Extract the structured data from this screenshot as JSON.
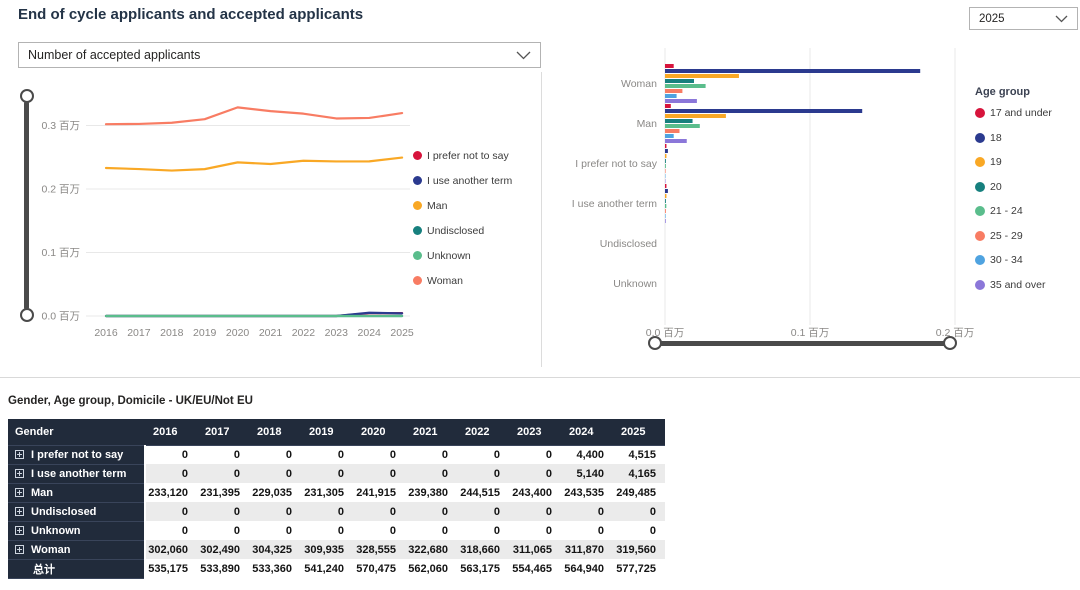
{
  "page": {
    "title": "End of cycle applicants and accepted applicants",
    "year_dropdown": {
      "value": "2025"
    },
    "metric_dropdown": {
      "value": "Number of accepted applicants"
    }
  },
  "chart_data": [
    {
      "type": "line",
      "title": "Number of accepted applicants",
      "x": [
        2016,
        2017,
        2018,
        2019,
        2020,
        2021,
        2022,
        2023,
        2024,
        2025
      ],
      "y_unit": "百万",
      "y_ticks": [
        {
          "v": 0.0,
          "label": "0.0 百万"
        },
        {
          "v": 0.1,
          "label": "0.1 百万"
        },
        {
          "v": 0.2,
          "label": "0.2 百万"
        },
        {
          "v": 0.3,
          "label": "0.3 百万"
        }
      ],
      "ylim": [
        0,
        0.35
      ],
      "legend_position": "right",
      "grid": true,
      "series": [
        {
          "name": "I prefer not to say",
          "color": "#D7143C",
          "values": [
            0,
            0,
            0,
            0,
            0,
            0,
            0,
            0,
            4400,
            4515
          ]
        },
        {
          "name": "I use another term",
          "color": "#2B3A8F",
          "values": [
            0,
            0,
            0,
            0,
            0,
            0,
            0,
            0,
            5140,
            4165
          ]
        },
        {
          "name": "Man",
          "color": "#F9A825",
          "values": [
            233120,
            231395,
            229035,
            231305,
            241915,
            239380,
            244515,
            243400,
            243535,
            249485
          ]
        },
        {
          "name": "Undisclosed",
          "color": "#17807E",
          "values": [
            0,
            0,
            0,
            0,
            0,
            0,
            0,
            0,
            0,
            0
          ]
        },
        {
          "name": "Unknown",
          "color": "#5ABD8C",
          "values": [
            0,
            0,
            0,
            0,
            0,
            0,
            0,
            0,
            0,
            0
          ]
        },
        {
          "name": "Woman",
          "color": "#F87C63",
          "values": [
            302060,
            302490,
            304325,
            309935,
            328555,
            322680,
            318660,
            311065,
            311870,
            319560
          ]
        }
      ]
    },
    {
      "type": "bar",
      "orientation": "horizontal",
      "categories": [
        "Woman",
        "Man",
        "I prefer not to say",
        "I use another term",
        "Undisclosed",
        "Unknown"
      ],
      "x_unit": "百万",
      "x_ticks": [
        {
          "v": 0.0,
          "label": "0.0 百万"
        },
        {
          "v": 0.1,
          "label": "0.1 百万"
        },
        {
          "v": 0.2,
          "label": "0.2 百万"
        }
      ],
      "xlim": [
        0,
        0.21
      ],
      "legend_title": "Age group",
      "legend_position": "right",
      "grid": true,
      "series": [
        {
          "name": "17 and under",
          "color": "#D7143C",
          "values": [
            0.006,
            0.004,
            0.001,
            0.001,
            0,
            0
          ]
        },
        {
          "name": "18",
          "color": "#2B3A8F",
          "values": [
            0.176,
            0.136,
            0.002,
            0.002,
            0,
            0
          ]
        },
        {
          "name": "19",
          "color": "#F9A825",
          "values": [
            0.051,
            0.042,
            0.001,
            0.001,
            0,
            0
          ]
        },
        {
          "name": "20",
          "color": "#17807E",
          "values": [
            0.02,
            0.019,
            0.0006,
            0.0006,
            0,
            0
          ]
        },
        {
          "name": "21 - 24",
          "color": "#5ABD8C",
          "values": [
            0.028,
            0.024,
            0.0006,
            0.0009,
            0,
            0
          ]
        },
        {
          "name": "25 - 29",
          "color": "#F87C63",
          "values": [
            0.012,
            0.01,
            0.0004,
            0.0006,
            0,
            0
          ]
        },
        {
          "name": "30 - 34",
          "color": "#4FA3E0",
          "values": [
            0.008,
            0.006,
            0.0003,
            0.0004,
            0,
            0
          ]
        },
        {
          "name": "35 and over",
          "color": "#8B77D9",
          "values": [
            0.022,
            0.015,
            0.0003,
            0.0005,
            0,
            0
          ]
        }
      ]
    }
  ],
  "table": {
    "title": "Gender, Age group, Domicile - UK/EU/Not EU",
    "header": [
      "Gender",
      "2016",
      "2017",
      "2018",
      "2019",
      "2020",
      "2021",
      "2022",
      "2023",
      "2024",
      "2025"
    ],
    "rows": [
      {
        "label": "I prefer not to say",
        "expandable": true,
        "values": [
          "0",
          "0",
          "0",
          "0",
          "0",
          "0",
          "0",
          "0",
          "4,400",
          "4,515"
        ]
      },
      {
        "label": "I use another term",
        "expandable": true,
        "values": [
          "0",
          "0",
          "0",
          "0",
          "0",
          "0",
          "0",
          "0",
          "5,140",
          "4,165"
        ]
      },
      {
        "label": "Man",
        "expandable": true,
        "values": [
          "233,120",
          "231,395",
          "229,035",
          "231,305",
          "241,915",
          "239,380",
          "244,515",
          "243,400",
          "243,535",
          "249,485"
        ]
      },
      {
        "label": "Undisclosed",
        "expandable": true,
        "values": [
          "0",
          "0",
          "0",
          "0",
          "0",
          "0",
          "0",
          "0",
          "0",
          "0"
        ]
      },
      {
        "label": "Unknown",
        "expandable": true,
        "values": [
          "0",
          "0",
          "0",
          "0",
          "0",
          "0",
          "0",
          "0",
          "0",
          "0"
        ]
      },
      {
        "label": "Woman",
        "expandable": true,
        "values": [
          "302,060",
          "302,490",
          "304,325",
          "309,935",
          "328,555",
          "322,680",
          "318,660",
          "311,065",
          "311,870",
          "319,560"
        ]
      }
    ],
    "total_row": {
      "label": "总计",
      "values": [
        "535,175",
        "533,890",
        "533,360",
        "541,240",
        "570,475",
        "562,060",
        "563,175",
        "554,465",
        "564,940",
        "577,725"
      ]
    }
  }
}
